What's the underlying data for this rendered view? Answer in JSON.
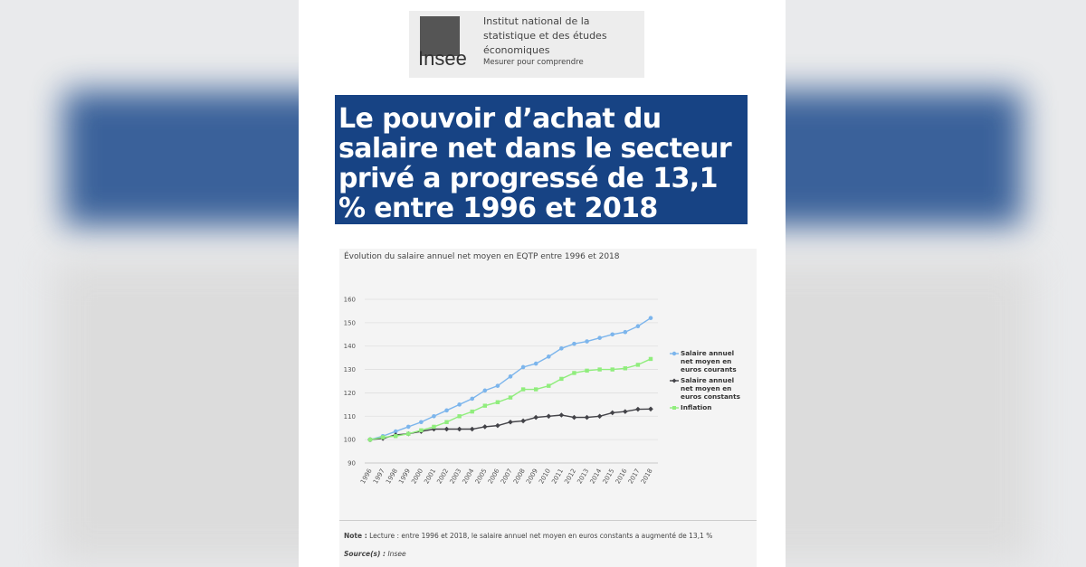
{
  "header": {
    "logo_word": "Insee",
    "institute": "Institut national de la statistique et des études économiques",
    "tagline": "Mesurer pour comprendre"
  },
  "headline": "Le pouvoir d’achat du salaire net dans le secteur privé a progressé de 13,1 % entre 1996 et 2018",
  "chart_data": {
    "type": "line",
    "title": "Évolution du salaire annuel net moyen en EQTP entre 1996 et 2018",
    "categories": [
      "1996",
      "1997",
      "1998",
      "1999",
      "2000",
      "2001",
      "2002",
      "2003",
      "2004",
      "2005",
      "2006",
      "2007",
      "2008",
      "2009",
      "2010",
      "2011",
      "2012",
      "2013",
      "2014",
      "2015",
      "2016",
      "2017",
      "2018"
    ],
    "series": [
      {
        "name": "Salaire annuel net moyen en euros courants",
        "color": "#7cb5ec",
        "marker": "circle",
        "values": [
          100,
          101.5,
          103.5,
          105.5,
          107.5,
          110,
          112.5,
          115,
          117.5,
          121,
          123,
          127,
          131,
          132.5,
          135.5,
          139,
          141,
          142,
          143.5,
          145,
          146,
          148.5,
          152
        ]
      },
      {
        "name": "Salaire annuel net moyen en euros constants",
        "color": "#434348",
        "marker": "diamond",
        "values": [
          100,
          100.5,
          102,
          102.5,
          103.5,
          104.5,
          104.5,
          104.5,
          104.5,
          105.5,
          106,
          107.5,
          108,
          109.5,
          110,
          110.5,
          109.5,
          109.5,
          110,
          111.5,
          112,
          113,
          113.1
        ]
      },
      {
        "name": "Inflation",
        "color": "#90ed7d",
        "marker": "square",
        "values": [
          100,
          101,
          101.5,
          102.5,
          104,
          105.5,
          107.5,
          110,
          112,
          114.5,
          116,
          118,
          121.5,
          121.5,
          123,
          126,
          128.5,
          129.5,
          130,
          130,
          130.5,
          132,
          134.5
        ]
      }
    ],
    "ylim": [
      90,
      160
    ],
    "yticks": [
      90,
      100,
      110,
      120,
      130,
      140,
      150,
      160
    ],
    "grid": true,
    "legend": "right"
  },
  "note": {
    "label": "Note :",
    "text": "Lecture : entre 1996 et 2018, le salaire annuel net moyen en euros constants a augmenté de 13,1 %"
  },
  "source": {
    "label": "Source(s) :",
    "text": "Insee"
  }
}
